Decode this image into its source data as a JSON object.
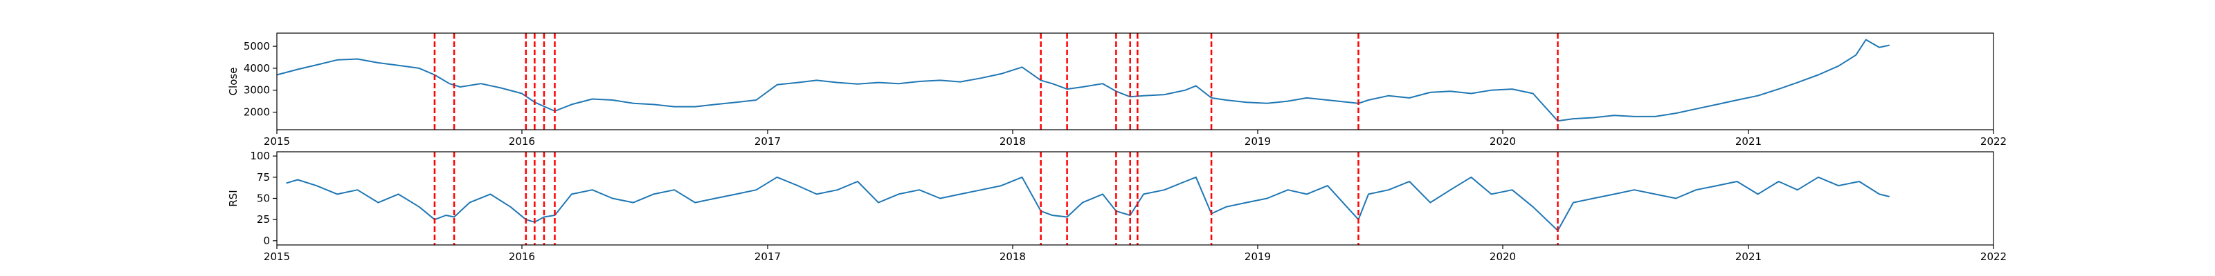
{
  "chart_data": [
    {
      "type": "line",
      "ylabel": "Close",
      "xlim": [
        "2015-01-01",
        "2022-01-01"
      ],
      "ylim": [
        1200,
        5600
      ],
      "x_ticks": [
        "2015",
        "2016",
        "2017",
        "2018",
        "2019",
        "2020",
        "2021",
        "2022"
      ],
      "y_ticks": [
        2000,
        3000,
        4000,
        5000
      ],
      "line_color": "#1f77b4",
      "vline_color": "#ff0000",
      "vlines": [
        "2015-08-24",
        "2015-09-22",
        "2016-01-07",
        "2016-01-20",
        "2016-02-03",
        "2016-02-19",
        "2018-02-12",
        "2018-03-23",
        "2018-06-04",
        "2018-06-25",
        "2018-07-06",
        "2018-10-24",
        "2019-05-31",
        "2020-03-23"
      ],
      "series": [
        {
          "x": [
            "2015-01-01",
            "2015-02-01",
            "2015-03-01",
            "2015-04-01",
            "2015-05-01",
            "2015-06-01",
            "2015-07-01",
            "2015-08-01",
            "2015-08-24",
            "2015-09-15",
            "2015-10-01",
            "2015-11-01",
            "2015-12-01",
            "2016-01-01",
            "2016-01-20",
            "2016-02-19",
            "2016-03-15",
            "2016-04-15",
            "2016-05-15",
            "2016-06-15",
            "2016-07-15",
            "2016-08-15",
            "2016-09-15",
            "2016-10-15",
            "2016-11-15",
            "2016-12-15",
            "2017-01-15",
            "2017-02-15",
            "2017-03-15",
            "2017-04-15",
            "2017-05-15",
            "2017-06-15",
            "2017-07-15",
            "2017-08-15",
            "2017-09-15",
            "2017-10-15",
            "2017-11-15",
            "2017-12-15",
            "2018-01-15",
            "2018-02-12",
            "2018-03-01",
            "2018-03-23",
            "2018-04-15",
            "2018-05-15",
            "2018-06-04",
            "2018-06-25",
            "2018-07-15",
            "2018-08-15",
            "2018-09-15",
            "2018-10-01",
            "2018-10-24",
            "2018-11-15",
            "2018-12-15",
            "2019-01-15",
            "2019-02-15",
            "2019-03-15",
            "2019-04-15",
            "2019-05-31",
            "2019-06-15",
            "2019-07-15",
            "2019-08-15",
            "2019-09-15",
            "2019-10-15",
            "2019-11-15",
            "2019-12-15",
            "2020-01-15",
            "2020-02-15",
            "2020-03-23",
            "2020-04-15",
            "2020-05-15",
            "2020-06-15",
            "2020-07-15",
            "2020-08-15",
            "2020-09-15",
            "2020-10-15",
            "2020-11-15",
            "2020-12-15",
            "2021-01-15",
            "2021-02-15",
            "2021-03-15",
            "2021-04-15",
            "2021-05-15",
            "2021-06-10",
            "2021-06-25",
            "2021-07-15",
            "2021-07-30"
          ],
          "y": [
            3700,
            3950,
            4150,
            4380,
            4420,
            4250,
            4130,
            4000,
            3700,
            3300,
            3150,
            3300,
            3100,
            2850,
            2450,
            2050,
            2350,
            2600,
            2550,
            2400,
            2350,
            2250,
            2250,
            2350,
            2450,
            2550,
            3250,
            3350,
            3450,
            3350,
            3280,
            3350,
            3300,
            3400,
            3450,
            3380,
            3550,
            3750,
            4050,
            3450,
            3300,
            3050,
            3150,
            3300,
            2950,
            2700,
            2750,
            2800,
            3000,
            3200,
            2650,
            2550,
            2450,
            2400,
            2500,
            2650,
            2550,
            2400,
            2550,
            2750,
            2650,
            2900,
            2950,
            2850,
            3000,
            3050,
            2850,
            1600,
            1700,
            1750,
            1850,
            1800,
            1800,
            1950,
            2150,
            2350,
            2550,
            2750,
            3050,
            3350,
            3700,
            4100,
            4600,
            5300,
            4950,
            5050
          ]
        }
      ]
    },
    {
      "type": "line",
      "ylabel": "RSI",
      "xlim": [
        "2015-01-01",
        "2022-01-01"
      ],
      "ylim": [
        -5,
        105
      ],
      "x_ticks": [
        "2015",
        "2016",
        "2017",
        "2018",
        "2019",
        "2020",
        "2021",
        "2022"
      ],
      "y_ticks": [
        0,
        25,
        50,
        75,
        100
      ],
      "line_color": "#1f77b4",
      "vline_color": "#ff0000",
      "vlines": [
        "2015-08-24",
        "2015-09-22",
        "2016-01-07",
        "2016-01-20",
        "2016-02-03",
        "2016-02-19",
        "2018-02-12",
        "2018-03-23",
        "2018-06-04",
        "2018-06-25",
        "2018-07-06",
        "2018-10-24",
        "2019-05-31",
        "2020-03-23"
      ],
      "series": [
        {
          "x": [
            "2015-01-15",
            "2015-02-01",
            "2015-03-01",
            "2015-04-01",
            "2015-05-01",
            "2015-06-01",
            "2015-07-01",
            "2015-08-01",
            "2015-08-24",
            "2015-09-10",
            "2015-09-22",
            "2015-10-15",
            "2015-11-15",
            "2015-12-15",
            "2016-01-07",
            "2016-01-20",
            "2016-02-03",
            "2016-02-19",
            "2016-03-15",
            "2016-04-15",
            "2016-05-15",
            "2016-06-15",
            "2016-07-15",
            "2016-08-15",
            "2016-09-15",
            "2016-10-15",
            "2016-11-15",
            "2016-12-15",
            "2017-01-15",
            "2017-02-15",
            "2017-03-15",
            "2017-04-15",
            "2017-05-15",
            "2017-06-15",
            "2017-07-15",
            "2017-08-15",
            "2017-09-15",
            "2017-10-15",
            "2017-11-15",
            "2017-12-15",
            "2018-01-15",
            "2018-02-12",
            "2018-03-01",
            "2018-03-23",
            "2018-04-15",
            "2018-05-15",
            "2018-06-04",
            "2018-06-25",
            "2018-07-15",
            "2018-08-15",
            "2018-09-15",
            "2018-10-01",
            "2018-10-24",
            "2018-11-15",
            "2018-12-15",
            "2019-01-15",
            "2019-02-15",
            "2019-03-15",
            "2019-04-15",
            "2019-05-31",
            "2019-06-15",
            "2019-07-15",
            "2019-08-15",
            "2019-09-15",
            "2019-10-15",
            "2019-11-15",
            "2019-12-15",
            "2020-01-15",
            "2020-02-15",
            "2020-03-23",
            "2020-04-15",
            "2020-05-15",
            "2020-06-15",
            "2020-07-15",
            "2020-08-15",
            "2020-09-15",
            "2020-10-15",
            "2020-11-15",
            "2020-12-15",
            "2021-01-15",
            "2021-02-15",
            "2021-03-15",
            "2021-04-15",
            "2021-05-15",
            "2021-06-15",
            "2021-07-15",
            "2021-07-30"
          ],
          "y": [
            68,
            72,
            65,
            55,
            60,
            45,
            55,
            40,
            25,
            30,
            28,
            45,
            55,
            40,
            25,
            22,
            28,
            30,
            55,
            60,
            50,
            45,
            55,
            60,
            45,
            50,
            55,
            60,
            75,
            65,
            55,
            60,
            70,
            45,
            55,
            60,
            50,
            55,
            60,
            65,
            75,
            35,
            30,
            28,
            45,
            55,
            35,
            30,
            55,
            60,
            70,
            75,
            32,
            40,
            45,
            50,
            60,
            55,
            65,
            25,
            55,
            60,
            70,
            45,
            60,
            75,
            55,
            60,
            40,
            12,
            45,
            50,
            55,
            60,
            55,
            50,
            60,
            65,
            70,
            55,
            70,
            60,
            75,
            65,
            70,
            55,
            52
          ]
        }
      ]
    }
  ]
}
